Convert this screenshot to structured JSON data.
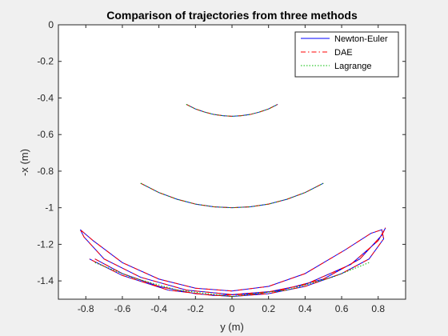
{
  "chart_data": {
    "type": "line",
    "title": "Comparison of trajectories from three methods",
    "xlabel": "y (m)",
    "ylabel": "-x (m)",
    "xlim": [
      -0.95,
      0.95
    ],
    "ylim": [
      -1.5,
      0
    ],
    "xticks": [
      -0.8,
      -0.6,
      -0.4,
      -0.2,
      0,
      0.2,
      0.4,
      0.6,
      0.8
    ],
    "xtick_labels": [
      "-0.8",
      "-0.6",
      "-0.4",
      "-0.2",
      "0",
      "0.2",
      "0.4",
      "0.6",
      "0.8"
    ],
    "yticks": [
      0,
      -0.2,
      -0.4,
      -0.6,
      -0.8,
      -1,
      -1.2,
      -1.4
    ],
    "ytick_labels": [
      "0",
      "-0.2",
      "-0.4",
      "-0.6",
      "-0.8",
      "-1",
      "-1.2",
      "-1.4"
    ],
    "grid": false,
    "legend_position": "top-right",
    "series": [
      {
        "name": "Newton-Euler",
        "color": "#0000ff",
        "dash": "solid",
        "paths": [
          [
            [
              -0.25,
              -0.435
            ],
            [
              -0.2,
              -0.46
            ],
            [
              -0.15,
              -0.477
            ],
            [
              -0.1,
              -0.49
            ],
            [
              -0.05,
              -0.497
            ],
            [
              0,
              -0.5
            ],
            [
              0.05,
              -0.497
            ],
            [
              0.1,
              -0.49
            ],
            [
              0.15,
              -0.477
            ],
            [
              0.2,
              -0.46
            ],
            [
              0.25,
              -0.435
            ]
          ],
          [
            [
              -0.5,
              -0.866
            ],
            [
              -0.4,
              -0.917
            ],
            [
              -0.3,
              -0.954
            ],
            [
              -0.2,
              -0.98
            ],
            [
              -0.1,
              -0.995
            ],
            [
              0,
              -1.0
            ],
            [
              0.1,
              -0.995
            ],
            [
              0.2,
              -0.98
            ],
            [
              0.3,
              -0.954
            ],
            [
              0.4,
              -0.917
            ],
            [
              0.5,
              -0.866
            ]
          ],
          [
            [
              -0.75,
              -1.28
            ],
            [
              -0.6,
              -1.36
            ],
            [
              -0.4,
              -1.43
            ],
            [
              -0.2,
              -1.47
            ],
            [
              0,
              -1.485
            ],
            [
              0.2,
              -1.47
            ],
            [
              0.4,
              -1.43
            ],
            [
              0.6,
              -1.36
            ],
            [
              0.75,
              -1.28
            ],
            [
              0.83,
              -1.17
            ],
            [
              0.82,
              -1.12
            ],
            [
              0.76,
              -1.14
            ],
            [
              0.62,
              -1.23
            ],
            [
              0.4,
              -1.36
            ],
            [
              0.2,
              -1.43
            ],
            [
              0,
              -1.455
            ],
            [
              -0.2,
              -1.44
            ],
            [
              -0.4,
              -1.39
            ],
            [
              -0.6,
              -1.3
            ],
            [
              -0.76,
              -1.18
            ],
            [
              -0.83,
              -1.12
            ],
            [
              -0.81,
              -1.16
            ],
            [
              -0.7,
              -1.28
            ],
            [
              -0.5,
              -1.38
            ],
            [
              -0.25,
              -1.45
            ],
            [
              0,
              -1.475
            ],
            [
              0.25,
              -1.455
            ],
            [
              0.5,
              -1.39
            ],
            [
              0.7,
              -1.28
            ],
            [
              0.82,
              -1.15
            ],
            [
              0.84,
              -1.11
            ],
            [
              0.8,
              -1.18
            ],
            [
              0.65,
              -1.31
            ],
            [
              0.4,
              -1.42
            ],
            [
              0.15,
              -1.47
            ],
            [
              -0.1,
              -1.48
            ],
            [
              -0.35,
              -1.45
            ],
            [
              -0.6,
              -1.37
            ],
            [
              -0.78,
              -1.28
            ]
          ]
        ]
      },
      {
        "name": "DAE",
        "color": "#ff0000",
        "dash": "dashdot",
        "paths": [
          [
            [
              -0.25,
              -0.435
            ],
            [
              -0.2,
              -0.46
            ],
            [
              -0.15,
              -0.477
            ],
            [
              -0.1,
              -0.49
            ],
            [
              -0.05,
              -0.497
            ],
            [
              0,
              -0.5
            ],
            [
              0.05,
              -0.497
            ],
            [
              0.1,
              -0.49
            ],
            [
              0.15,
              -0.477
            ],
            [
              0.2,
              -0.46
            ],
            [
              0.25,
              -0.435
            ]
          ],
          [
            [
              -0.5,
              -0.866
            ],
            [
              -0.4,
              -0.917
            ],
            [
              -0.3,
              -0.954
            ],
            [
              -0.2,
              -0.98
            ],
            [
              -0.1,
              -0.995
            ],
            [
              0,
              -1.0
            ],
            [
              0.1,
              -0.995
            ],
            [
              0.2,
              -0.98
            ],
            [
              0.3,
              -0.954
            ],
            [
              0.4,
              -0.917
            ],
            [
              0.5,
              -0.866
            ]
          ],
          [
            [
              -0.75,
              -1.28
            ],
            [
              -0.6,
              -1.36
            ],
            [
              -0.4,
              -1.43
            ],
            [
              -0.2,
              -1.47
            ],
            [
              0,
              -1.485
            ],
            [
              0.2,
              -1.47
            ],
            [
              0.4,
              -1.43
            ],
            [
              0.6,
              -1.36
            ],
            [
              0.75,
              -1.28
            ],
            [
              0.83,
              -1.17
            ],
            [
              0.82,
              -1.12
            ],
            [
              0.76,
              -1.14
            ],
            [
              0.62,
              -1.23
            ],
            [
              0.4,
              -1.36
            ],
            [
              0.2,
              -1.43
            ],
            [
              0,
              -1.455
            ],
            [
              -0.2,
              -1.44
            ],
            [
              -0.4,
              -1.39
            ],
            [
              -0.6,
              -1.3
            ],
            [
              -0.76,
              -1.18
            ],
            [
              -0.83,
              -1.12
            ],
            [
              -0.81,
              -1.16
            ],
            [
              -0.7,
              -1.28
            ],
            [
              -0.5,
              -1.38
            ],
            [
              -0.25,
              -1.45
            ],
            [
              0,
              -1.475
            ],
            [
              0.25,
              -1.455
            ],
            [
              0.5,
              -1.39
            ],
            [
              0.7,
              -1.28
            ],
            [
              0.82,
              -1.15
            ],
            [
              0.84,
              -1.11
            ],
            [
              0.8,
              -1.18
            ],
            [
              0.65,
              -1.31
            ],
            [
              0.4,
              -1.42
            ],
            [
              0.15,
              -1.47
            ],
            [
              -0.1,
              -1.48
            ],
            [
              -0.35,
              -1.45
            ],
            [
              -0.6,
              -1.37
            ],
            [
              -0.78,
              -1.28
            ]
          ]
        ]
      },
      {
        "name": "Lagrange",
        "color": "#00bb00",
        "dash": "dotted",
        "paths": [
          [
            [
              -0.25,
              -0.435
            ],
            [
              -0.2,
              -0.46
            ],
            [
              -0.15,
              -0.477
            ],
            [
              -0.1,
              -0.49
            ],
            [
              -0.05,
              -0.497
            ],
            [
              0,
              -0.5
            ],
            [
              0.05,
              -0.497
            ],
            [
              0.1,
              -0.49
            ],
            [
              0.15,
              -0.477
            ],
            [
              0.2,
              -0.46
            ],
            [
              0.25,
              -0.435
            ]
          ],
          [
            [
              -0.5,
              -0.866
            ],
            [
              -0.4,
              -0.917
            ],
            [
              -0.3,
              -0.954
            ],
            [
              -0.2,
              -0.98
            ],
            [
              -0.1,
              -0.995
            ],
            [
              0,
              -1.0
            ],
            [
              0.1,
              -0.995
            ],
            [
              0.2,
              -0.98
            ],
            [
              0.3,
              -0.954
            ],
            [
              0.4,
              -0.917
            ],
            [
              0.5,
              -0.866
            ]
          ],
          [
            [
              -0.75,
              -1.3
            ],
            [
              -0.55,
              -1.38
            ],
            [
              -0.3,
              -1.45
            ],
            [
              0,
              -1.485
            ],
            [
              0.3,
              -1.45
            ],
            [
              0.55,
              -1.38
            ],
            [
              0.75,
              -1.3
            ]
          ]
        ]
      }
    ]
  }
}
